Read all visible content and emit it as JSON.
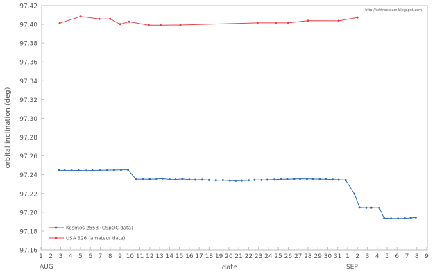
{
  "chart_data": {
    "type": "line",
    "watermark": "http://sattrackcam.blogspot.com",
    "xlabel": "date",
    "ylabel": "orbital inclination (deg)",
    "x_tick_labels": [
      "1",
      "2",
      "3",
      "4",
      "5",
      "6",
      "7",
      "8",
      "9",
      "10",
      "11",
      "12",
      "13",
      "14",
      "15",
      "16",
      "17",
      "18",
      "19",
      "20",
      "21",
      "22",
      "23",
      "24",
      "25",
      "26",
      "27",
      "28",
      "29",
      "30",
      "31",
      "1",
      "2",
      "3",
      "4",
      "5",
      "6",
      "7",
      "8",
      "9"
    ],
    "month_labels": [
      {
        "text": "AUG",
        "at": "1"
      },
      {
        "text": "SEP",
        "at": "32"
      }
    ],
    "xlim": [
      1,
      40
    ],
    "ylim": [
      97.16,
      97.42
    ],
    "y_ticks": [
      "97.16",
      "97.18",
      "97.20",
      "97.22",
      "97.24",
      "97.26",
      "97.28",
      "97.30",
      "97.32",
      "97.34",
      "97.36",
      "97.38",
      "97.40",
      "97.42"
    ],
    "grid": false,
    "legend_position": "bottom-left",
    "series": [
      {
        "name": "Kosmos 2558  (CSpOC data)",
        "color": "#2e6fb8",
        "points": [
          [
            2.8,
            97.2448
          ],
          [
            3.4,
            97.2446
          ],
          [
            4.1,
            97.2445
          ],
          [
            4.8,
            97.2446
          ],
          [
            5.6,
            97.2444
          ],
          [
            6.2,
            97.2446
          ],
          [
            7.0,
            97.2447
          ],
          [
            7.7,
            97.2449
          ],
          [
            8.4,
            97.245
          ],
          [
            9.1,
            97.2452
          ],
          [
            9.8,
            97.2453
          ],
          [
            10.6,
            97.2352
          ],
          [
            11.3,
            97.2353
          ],
          [
            12.0,
            97.2352
          ],
          [
            12.7,
            97.2354
          ],
          [
            13.3,
            97.2358
          ],
          [
            14.0,
            97.235
          ],
          [
            14.6,
            97.2349
          ],
          [
            15.3,
            97.2354
          ],
          [
            16.0,
            97.2348
          ],
          [
            16.6,
            97.2346
          ],
          [
            17.3,
            97.2347
          ],
          [
            18.0,
            97.2343
          ],
          [
            18.7,
            97.2341
          ],
          [
            19.4,
            97.2342
          ],
          [
            20.1,
            97.2338
          ],
          [
            20.7,
            97.2336
          ],
          [
            21.3,
            97.2338
          ],
          [
            22.0,
            97.2341
          ],
          [
            22.6,
            97.2344
          ],
          [
            23.3,
            97.2343
          ],
          [
            23.9,
            97.2346
          ],
          [
            24.6,
            97.2348
          ],
          [
            25.3,
            97.2351
          ],
          [
            25.9,
            97.2352
          ],
          [
            26.6,
            97.2354
          ],
          [
            27.2,
            97.2356
          ],
          [
            27.9,
            97.2355
          ],
          [
            28.5,
            97.2354
          ],
          [
            29.2,
            97.2353
          ],
          [
            29.8,
            97.2352
          ],
          [
            30.5,
            97.2348
          ],
          [
            31.1,
            97.2346
          ],
          [
            31.8,
            97.2343
          ],
          [
            32.7,
            97.2195
          ],
          [
            33.2,
            97.2053
          ],
          [
            33.9,
            97.2049
          ],
          [
            34.4,
            97.205
          ],
          [
            35.2,
            97.2048
          ],
          [
            35.7,
            97.1937
          ],
          [
            36.4,
            97.1934
          ],
          [
            37.1,
            97.1933
          ],
          [
            37.8,
            97.1935
          ],
          [
            38.4,
            97.194
          ],
          [
            38.9,
            97.1944
          ]
        ]
      },
      {
        "name": "USA 326  (amateur data)",
        "color": "#e8404a",
        "points": [
          [
            2.9,
            97.4013
          ],
          [
            5.0,
            97.4083
          ],
          [
            6.9,
            97.4058
          ],
          [
            8.0,
            97.4058
          ],
          [
            9.0,
            97.4002
          ],
          [
            9.9,
            97.4028
          ],
          [
            11.9,
            97.3991
          ],
          [
            13.1,
            97.3991
          ],
          [
            15.1,
            97.3993
          ],
          [
            22.9,
            97.4016
          ],
          [
            24.8,
            97.4016
          ],
          [
            26.0,
            97.4016
          ],
          [
            28.0,
            97.4039
          ],
          [
            31.1,
            97.4038
          ],
          [
            33.0,
            97.4074
          ]
        ]
      }
    ]
  }
}
